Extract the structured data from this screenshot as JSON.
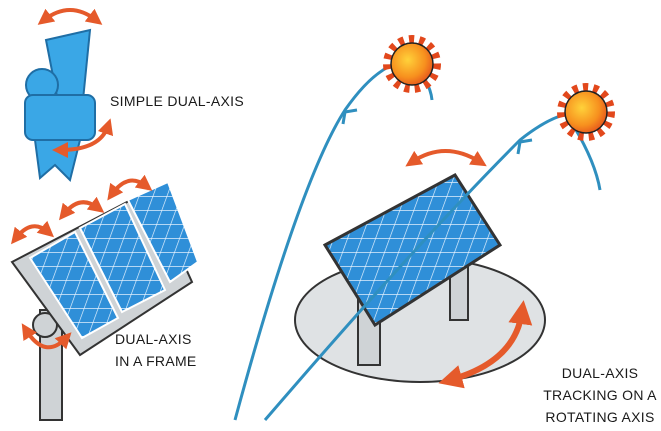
{
  "labels": [
    {
      "lines": [
        "SIMPLE DUAL-AXIS"
      ]
    },
    {
      "lines": [
        "DUAL-AXIS",
        "IN A FRAME"
      ]
    },
    {
      "lines": [
        "DUAL-AXIS",
        "TRACKING ON A",
        "ROTATING AXIS"
      ]
    }
  ]
}
